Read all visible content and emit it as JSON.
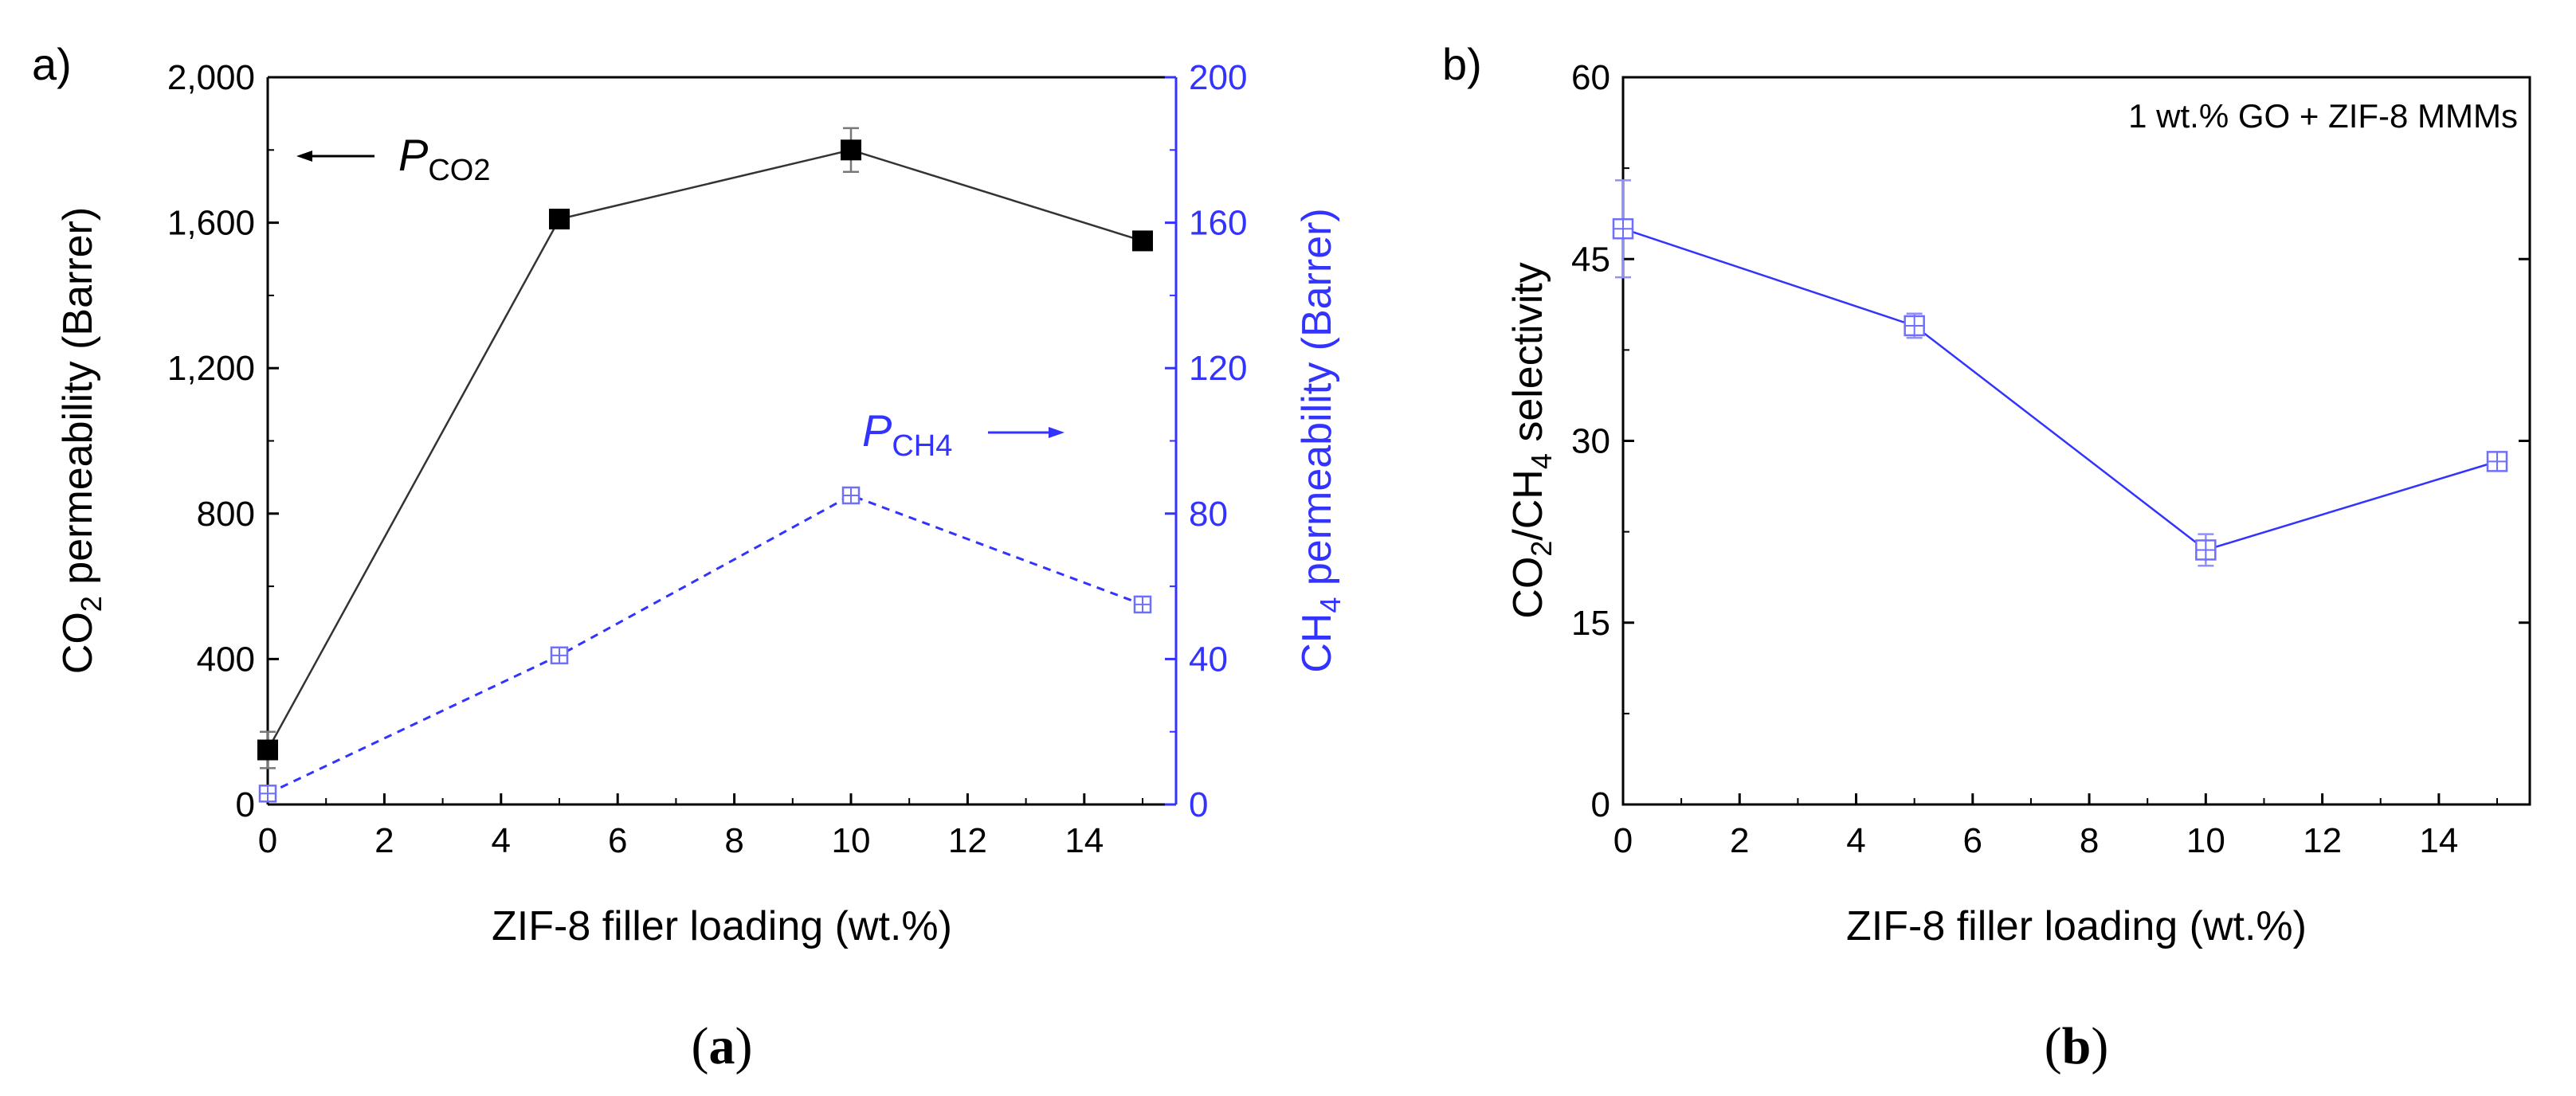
{
  "colors": {
    "axis": "#000000",
    "series_co2": "#333333",
    "series_ch4": "#3333ff",
    "series_ch4_light": "#8f8fff",
    "marker_ch4": "#6f6fff"
  },
  "chart_data": [
    {
      "type": "line",
      "panel_label": "a)",
      "caption": "a",
      "xlabel": "ZIF-8 filler loading (wt.%)",
      "ylabel_left": {
        "main": "CO",
        "sub": "2",
        "rest": " permeability (Barrer)"
      },
      "ylabel_right": {
        "main": "CH",
        "sub": "4",
        "rest": " permeability (Barrer)"
      },
      "xlim": [
        0,
        15.5
      ],
      "xticks": [
        "0",
        "2",
        "4",
        "6",
        "8",
        "10",
        "12",
        "14"
      ],
      "xtick_values": [
        0,
        2,
        4,
        6,
        8,
        10,
        12,
        14
      ],
      "ylim_left": [
        0,
        2000
      ],
      "yticks_left": [
        "0",
        "400",
        "800",
        "1,200",
        "1,600",
        "2,000"
      ],
      "ytick_values_left": [
        0,
        400,
        800,
        1200,
        1600,
        2000
      ],
      "ylim_right": [
        0,
        200
      ],
      "yticks_right": [
        "0",
        "40",
        "80",
        "120",
        "160",
        "200"
      ],
      "ytick_values_right": [
        0,
        40,
        80,
        120,
        160,
        200
      ],
      "series": [
        {
          "name": "P_CO2",
          "axis": "left",
          "style": "solid",
          "marker": "filled-square",
          "x": [
            0,
            5,
            10,
            15
          ],
          "values": [
            150,
            1610,
            1800,
            1550
          ],
          "errors": [
            50,
            15,
            60,
            10
          ]
        },
        {
          "name": "P_CH4",
          "axis": "right",
          "style": "dashed",
          "marker": "open-square-cross",
          "x": [
            0,
            5,
            10,
            15
          ],
          "values": [
            3,
            41,
            85,
            55
          ],
          "errors": [
            1,
            1,
            2,
            1
          ]
        }
      ],
      "annotations": {
        "co2": {
          "main": "P",
          "sub": "CO2",
          "arrow": "left"
        },
        "ch4": {
          "main": "P",
          "sub": "CH4",
          "arrow": "right"
        }
      }
    },
    {
      "type": "line",
      "panel_label": "b)",
      "caption": "b",
      "legend_text": "1 wt.% GO + ZIF-8 MMMs",
      "xlabel": "ZIF-8 filler loading (wt.%)",
      "ylabel": {
        "p1": "CO",
        "s1": "2",
        "p2": "/CH",
        "s2": "4",
        "p3": " selectivity"
      },
      "xlim": [
        0,
        15.5
      ],
      "xticks": [
        "0",
        "2",
        "4",
        "6",
        "8",
        "10",
        "12",
        "14"
      ],
      "xtick_values": [
        0,
        2,
        4,
        6,
        8,
        10,
        12,
        14
      ],
      "ylim": [
        0,
        60
      ],
      "yticks": [
        "0",
        "15",
        "30",
        "45",
        "60"
      ],
      "ytick_values": [
        0,
        15,
        30,
        45,
        60
      ],
      "series": [
        {
          "name": "CO2/CH4 selectivity",
          "style": "solid",
          "marker": "open-square-cross",
          "x": [
            0,
            5,
            10,
            15
          ],
          "values": [
            47.5,
            39.5,
            21,
            28.3
          ],
          "errors": [
            4,
            1,
            1.3,
            0.5
          ]
        }
      ]
    }
  ]
}
